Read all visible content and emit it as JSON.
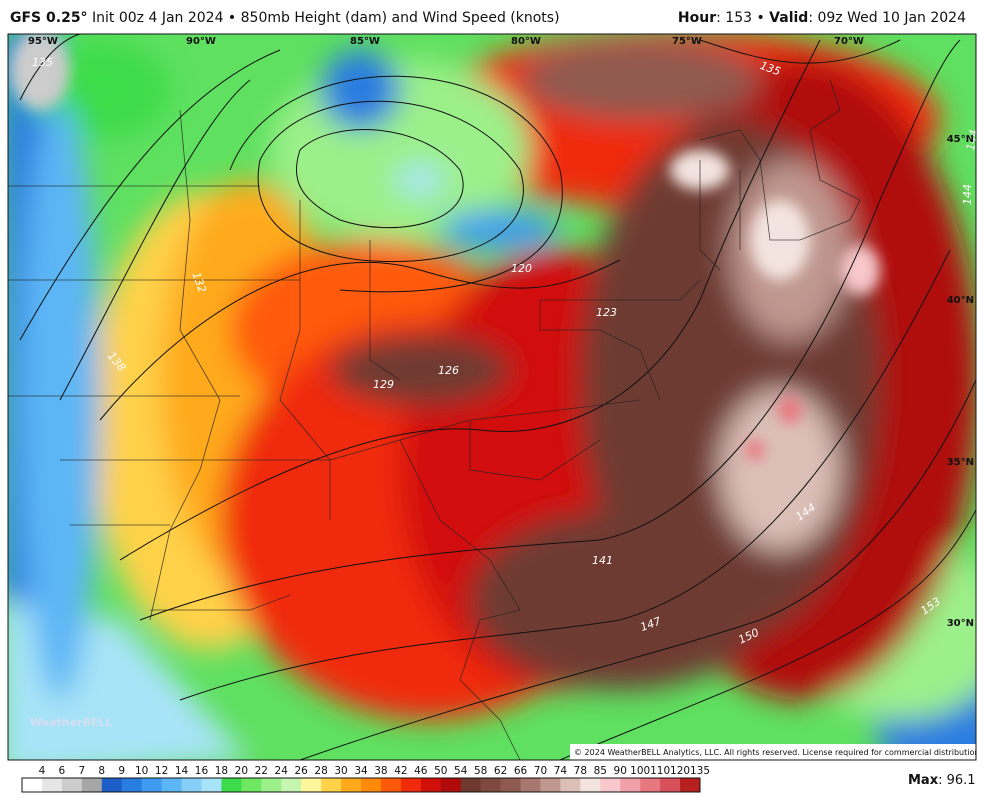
{
  "header": {
    "model": "GFS 0.25°",
    "init": " Init 00z 4 Jan 2024 • 850mb Height (dam) and Wind Speed (knots)",
    "hour_label": "Hour",
    "hour_value": ": 153 • ",
    "valid_label": "Valid",
    "valid_value": ": 09z Wed 10 Jan 2024"
  },
  "map": {
    "longitudes": [
      "95°W",
      "90°W",
      "85°W",
      "80°W",
      "75°W",
      "70°W"
    ],
    "latitudes": [
      "45°N",
      "40°N",
      "35°N",
      "30°N"
    ],
    "contour_labels": [
      "135",
      "132",
      "138",
      "120",
      "123",
      "126",
      "129",
      "141",
      "144",
      "147",
      "150",
      "153",
      "135",
      "144",
      "144"
    ],
    "watermark": "WeatherBELL",
    "copyright": "© 2024 WeatherBELL Analytics, LLC. All rights reserved. License required for commercial distribution."
  },
  "colorbar": {
    "labels": [
      "4",
      "6",
      "7",
      "8",
      "9",
      "10",
      "12",
      "14",
      "16",
      "18",
      "20",
      "22",
      "24",
      "26",
      "28",
      "30",
      "34",
      "38",
      "42",
      "46",
      "50",
      "54",
      "58",
      "62",
      "66",
      "70",
      "74",
      "78",
      "85",
      "90",
      "100",
      "110",
      "120",
      "135"
    ],
    "colors": [
      "#ffffff",
      "#e6e6e6",
      "#cccccc",
      "#a6a6a6",
      "#1c5fc9",
      "#2a7de0",
      "#3f9bf0",
      "#5cb6f5",
      "#86cff8",
      "#a8e4f8",
      "#3ddc4a",
      "#6ee860",
      "#9cf08a",
      "#c6f5b0",
      "#fff59a",
      "#ffd24a",
      "#ffaa1a",
      "#ff8a0a",
      "#ff5a0a",
      "#f02a0a",
      "#d2100a",
      "#b00a0a",
      "#6e3a30",
      "#7e4a40",
      "#8f5a50",
      "#a87870",
      "#c09890",
      "#dcc0b8",
      "#f4e4e0",
      "#f8c8cc",
      "#f0a0a8",
      "#e87880",
      "#d8505a",
      "#b82020"
    ],
    "max_label": "Max",
    "max_value": ": 96.1"
  }
}
